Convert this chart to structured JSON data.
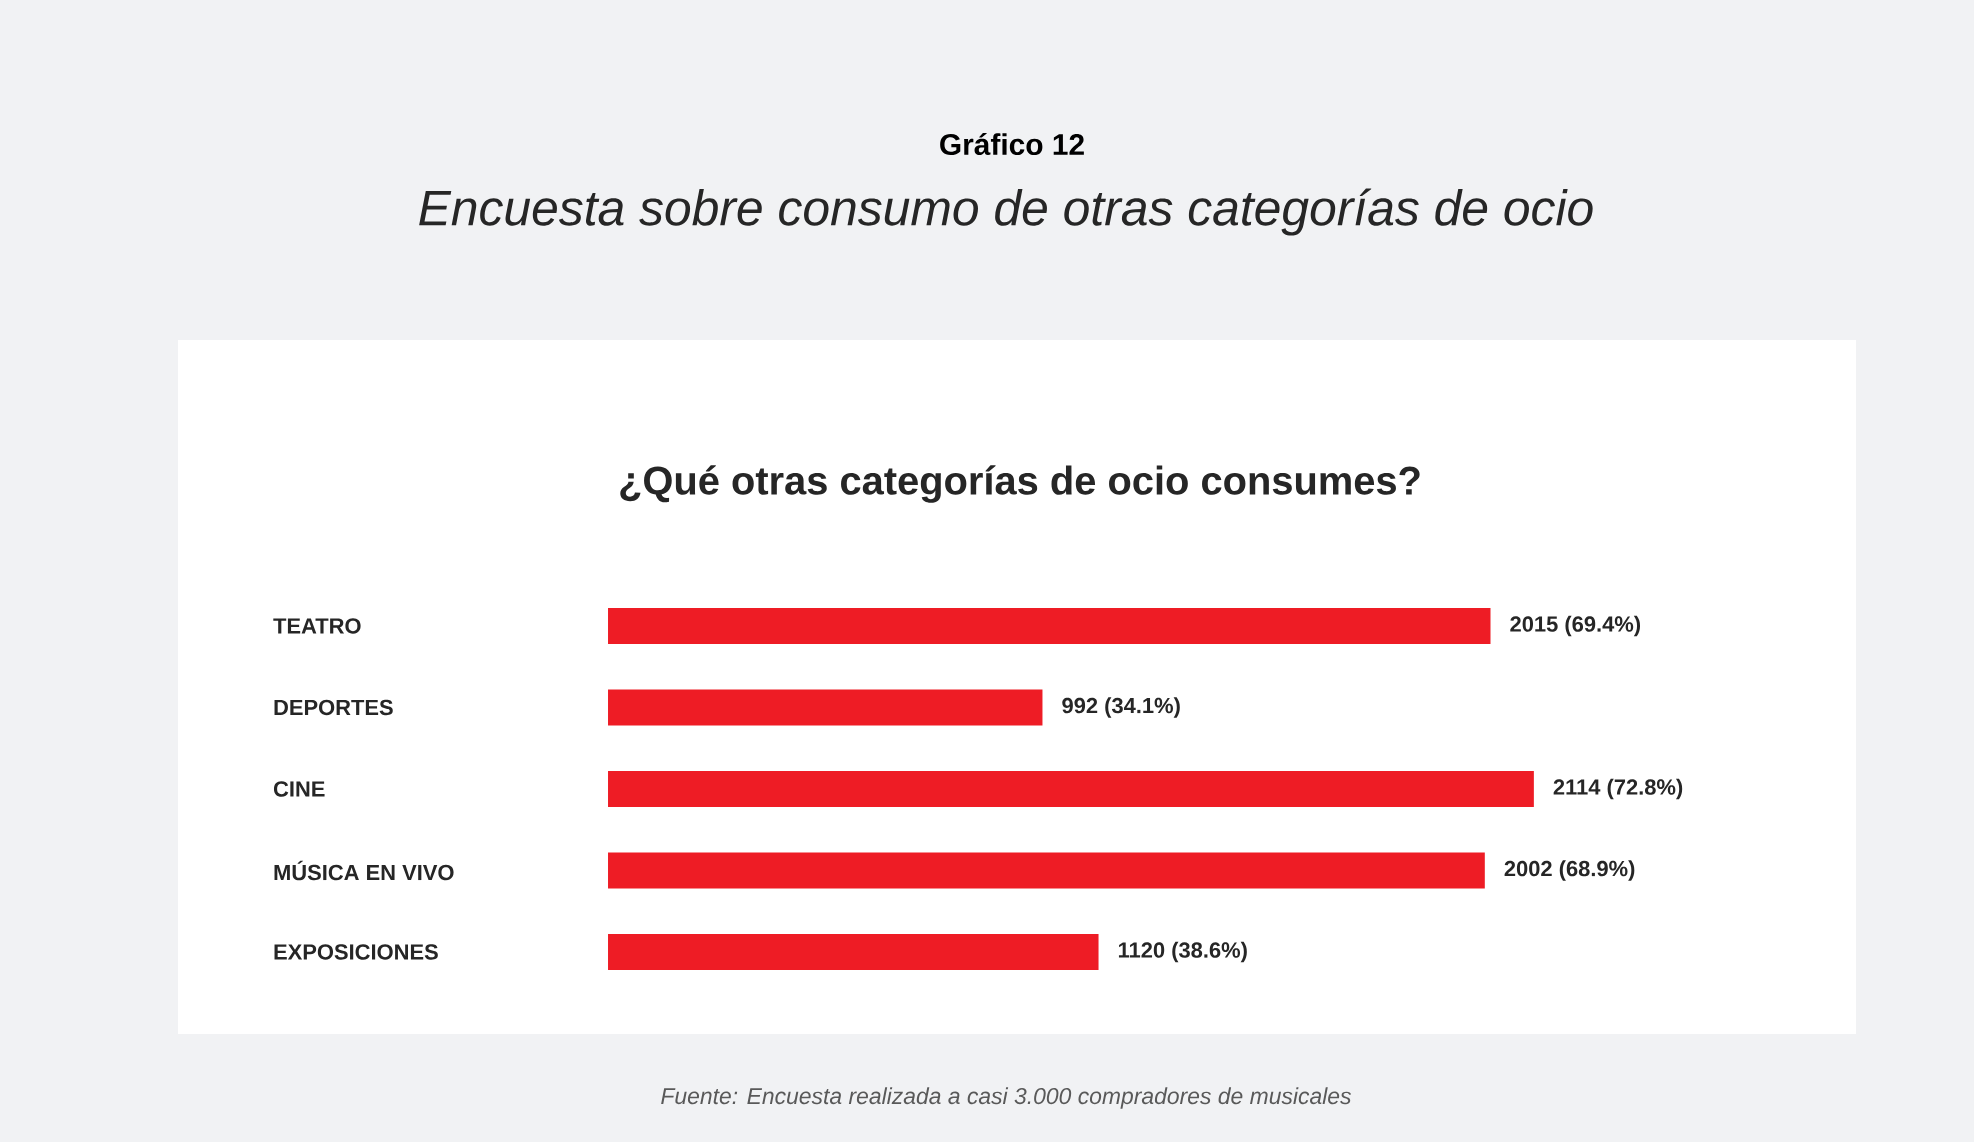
{
  "chart_data": {
    "type": "bar",
    "orientation": "horizontal",
    "title": "Gráfico 12",
    "subtitle": "Encuesta sobre consumo de otras categorías de ocio",
    "annotations": [
      "¿Qué otras categorías de ocio consumes?",
      "Fuente: Encuesta realizada a casi 3.000 compradores de musicales"
    ],
    "categories": [
      "TEATRO",
      "DEPORTES",
      "CINE",
      "MÚSICA EN VIVO",
      "EXPOSICIONES"
    ],
    "values": [
      2015,
      992,
      2114,
      2002,
      1120
    ],
    "value_labels": [
      "2015 (69.4%)",
      "992 (34.1%)",
      "2114 (72.8%)",
      "2002 (68.9%)",
      "1120 (38.6%)"
    ],
    "color": "#ee1c25",
    "tick_labels": "y"
  }
}
